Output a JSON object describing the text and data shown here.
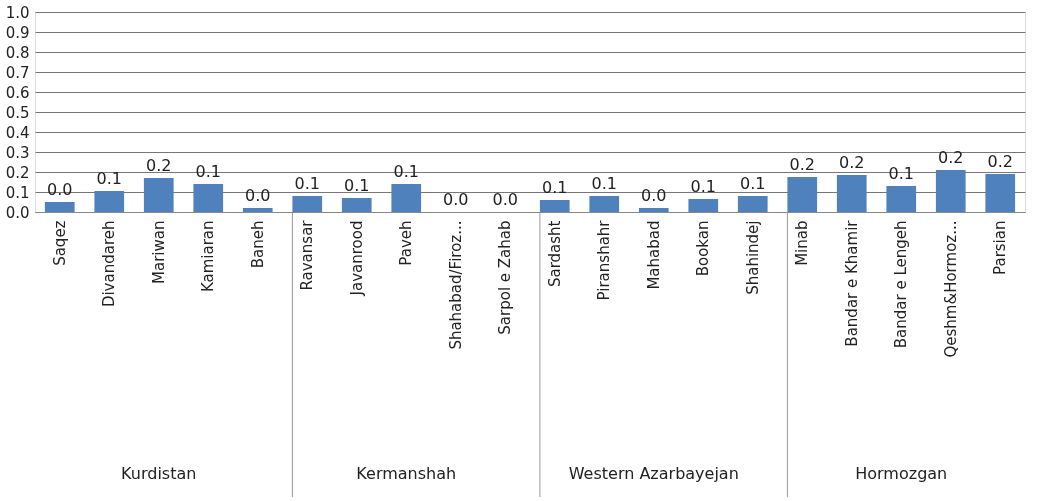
{
  "chart_data": {
    "type": "bar",
    "categories": [
      "Saqez",
      "Divandareh",
      "Mariwan",
      "Kamiaran",
      "Baneh",
      "Ravansar",
      "Javanrood",
      "Paveh",
      "Shahabad/Firoz...",
      "Sarpol e Zahab",
      "Sardasht",
      "Piranshahr",
      "Mahabad",
      "Bookan",
      "Shahindej",
      "Minab",
      "Bandar e Khamir",
      "Bandar e Lengeh",
      "Qeshm&Hormoz...",
      "Parsian"
    ],
    "values": [
      0.05,
      0.105,
      0.17,
      0.14,
      0.02,
      0.08,
      0.07,
      0.14,
      0,
      0,
      0.06,
      0.08,
      0.02,
      0.065,
      0.08,
      0.175,
      0.185,
      0.13,
      0.21,
      0.19
    ],
    "value_labels": [
      "0.0",
      "0.1",
      "0.2",
      "0.1",
      "0.0",
      "0.1",
      "0.1",
      "0.1",
      "0.0",
      "0.0",
      "0.1",
      "0.1",
      "0.0",
      "0.1",
      "0.1",
      "0.2",
      "0.2",
      "0.1",
      "0.2",
      "0.2"
    ],
    "color": "#4f81bd",
    "ylim": [
      0,
      1.0
    ],
    "yticks": [
      {
        "value": 0,
        "label": "0.0"
      },
      {
        "value": 0.1,
        "label": "0.1"
      },
      {
        "value": 0.2,
        "label": "0.2"
      },
      {
        "value": 0.3,
        "label": "0.3"
      },
      {
        "value": 0.4,
        "label": "0.4"
      },
      {
        "value": 0.5,
        "label": "0.5"
      },
      {
        "value": 0.6,
        "label": "0.6"
      },
      {
        "value": 0.7,
        "label": "0.7"
      },
      {
        "value": 0.8,
        "label": "0.8"
      },
      {
        "value": 0.9,
        "label": "0.9"
      },
      {
        "value": 1.0,
        "label": "1.0"
      }
    ],
    "grid": "y",
    "annotations": [
      "Kurdistan",
      "Kermanshah",
      "Western Azarbayejan",
      "Hormozgan"
    ]
  }
}
